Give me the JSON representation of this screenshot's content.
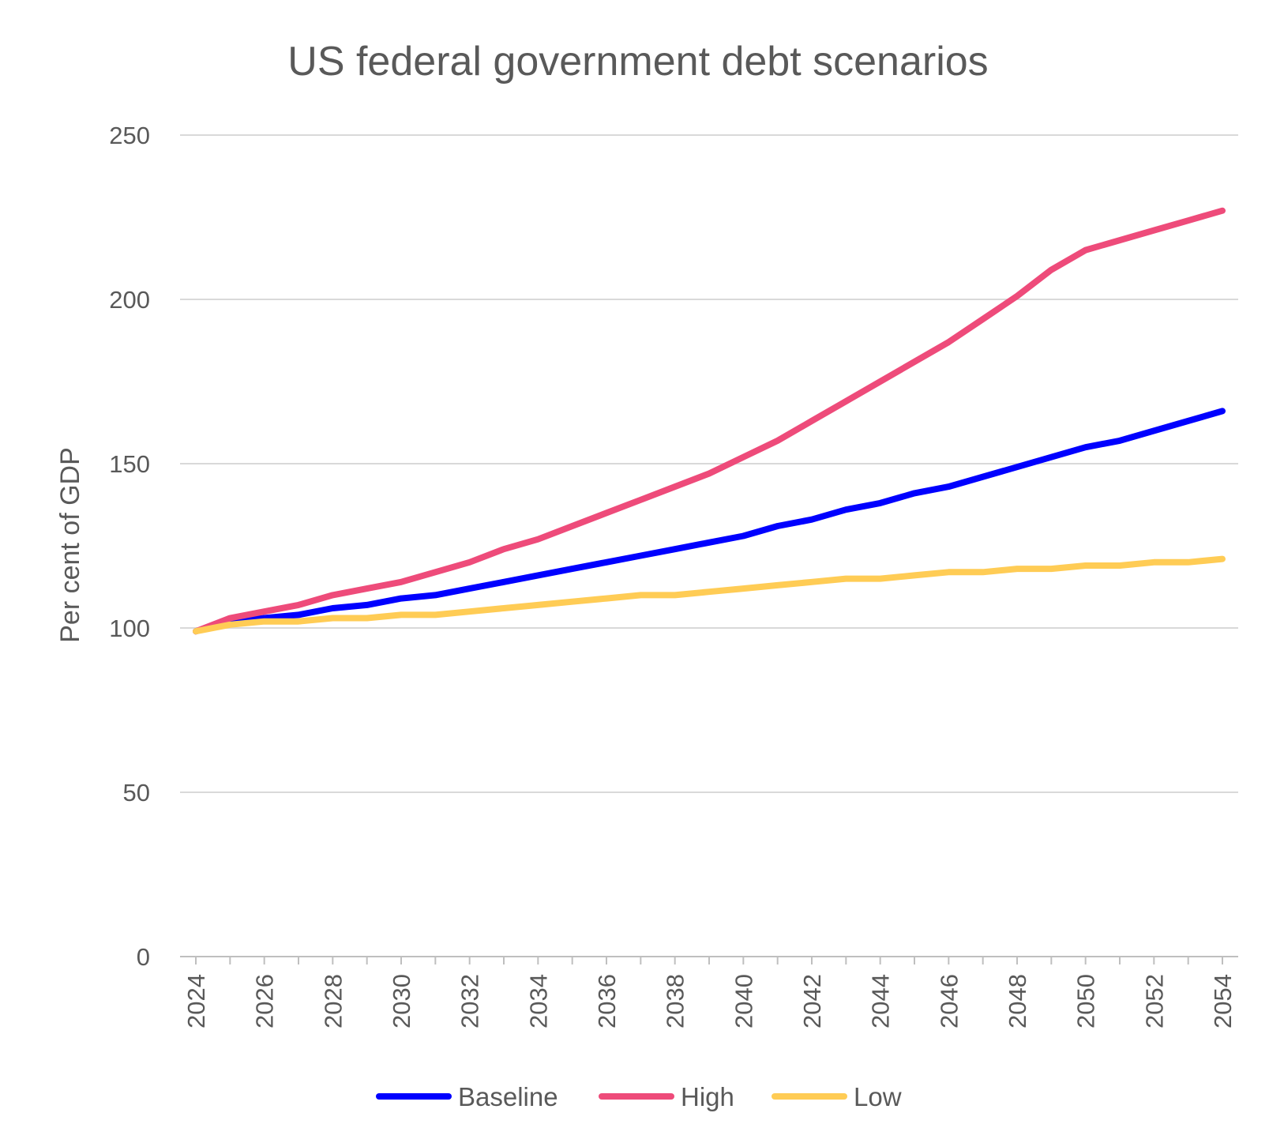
{
  "chart_data": {
    "type": "line",
    "title": "US federal government debt scenarios",
    "xlabel": "",
    "ylabel": "Per cent of GDP",
    "ylim": [
      0,
      250
    ],
    "yticks": [
      0,
      50,
      100,
      150,
      200,
      250
    ],
    "xlim": [
      2024,
      2054
    ],
    "xticks": [
      2024,
      2026,
      2028,
      2030,
      2032,
      2034,
      2036,
      2038,
      2040,
      2042,
      2044,
      2046,
      2048,
      2050,
      2052,
      2054
    ],
    "grid": true,
    "legend_position": "bottom",
    "x": [
      2024,
      2025,
      2026,
      2027,
      2028,
      2029,
      2030,
      2031,
      2032,
      2033,
      2034,
      2035,
      2036,
      2037,
      2038,
      2039,
      2040,
      2041,
      2042,
      2043,
      2044,
      2045,
      2046,
      2047,
      2048,
      2049,
      2050,
      2051,
      2052,
      2053,
      2054
    ],
    "series": [
      {
        "name": "Baseline",
        "color": "#0000ff",
        "values": [
          99,
          102,
          103,
          104,
          106,
          107,
          109,
          110,
          112,
          114,
          116,
          118,
          120,
          122,
          124,
          126,
          128,
          131,
          133,
          136,
          138,
          141,
          143,
          146,
          149,
          152,
          155,
          157,
          160,
          163,
          166
        ]
      },
      {
        "name": "High",
        "color": "#ee4b7a",
        "values": [
          99,
          103,
          105,
          107,
          110,
          112,
          114,
          117,
          120,
          124,
          127,
          131,
          135,
          139,
          143,
          147,
          152,
          157,
          163,
          169,
          175,
          181,
          187,
          194,
          201,
          209,
          215,
          218,
          221,
          224,
          227
        ]
      },
      {
        "name": "Low",
        "color": "#ffcc55",
        "values": [
          99,
          101,
          102,
          102,
          103,
          103,
          104,
          104,
          105,
          106,
          107,
          108,
          109,
          110,
          110,
          111,
          112,
          113,
          114,
          115,
          115,
          116,
          117,
          117,
          118,
          118,
          119,
          119,
          120,
          120,
          121
        ]
      }
    ]
  }
}
